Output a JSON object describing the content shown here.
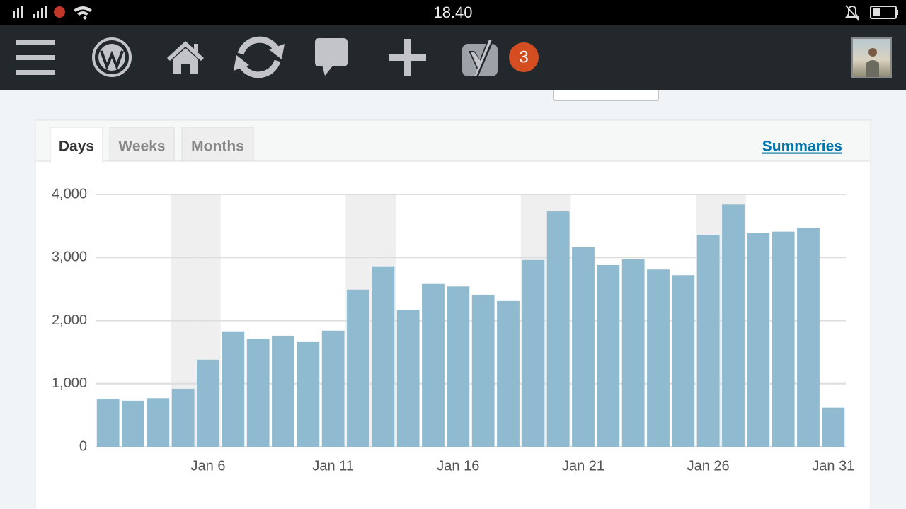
{
  "status_bar": {
    "time": "18.40"
  },
  "toolbar": {
    "badge": "3"
  },
  "tabs": [
    "Days",
    "Weeks",
    "Months"
  ],
  "active_tab": 0,
  "summaries_link": "Summaries",
  "chart_data": {
    "type": "bar",
    "categories": [
      null,
      null,
      null,
      null,
      "Jan 6",
      null,
      null,
      null,
      null,
      "Jan 11",
      null,
      null,
      null,
      null,
      "Jan 16",
      null,
      null,
      null,
      null,
      "Jan 21",
      null,
      null,
      null,
      null,
      "Jan 26",
      null,
      null,
      null,
      null,
      "Jan 31"
    ],
    "values": [
      760,
      730,
      770,
      920,
      1380,
      1830,
      1710,
      1760,
      1660,
      1840,
      2490,
      2860,
      2170,
      2580,
      2540,
      2410,
      2310,
      2960,
      3730,
      3160,
      2880,
      2970,
      2810,
      2720,
      3360,
      3840,
      3390,
      3410,
      3470,
      620
    ],
    "color": "#8fbad0",
    "ylim": [
      0,
      4000
    ],
    "yticks": [
      0,
      {
        "value": 1000,
        "label": "1,000"
      },
      {
        "value": 2000,
        "label": "2,000"
      },
      {
        "value": 3000,
        "label": "3,000"
      },
      {
        "value": 4000,
        "label": "4,000"
      }
    ],
    "grid": true,
    "shaded_categories": [
      3,
      4,
      10,
      11,
      17,
      18,
      24,
      25
    ]
  }
}
